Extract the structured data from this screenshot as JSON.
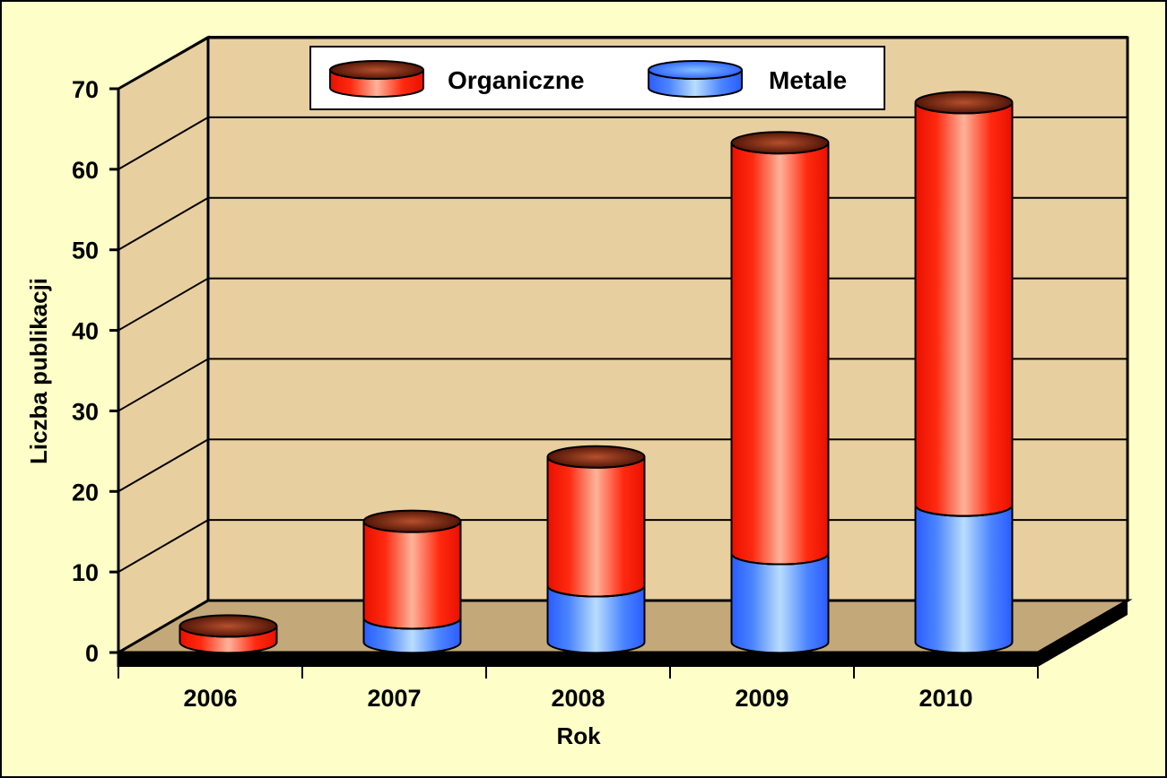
{
  "chart_data": {
    "type": "bar",
    "stacked": true,
    "three_d": true,
    "bar_shape": "cylinder",
    "categories": [
      "2006",
      "2007",
      "2008",
      "2009",
      "2010"
    ],
    "series": [
      {
        "name": "Metale",
        "color": "#3f7bff",
        "values": [
          0,
          3,
          7,
          11,
          17
        ]
      },
      {
        "name": "Organiczne",
        "color": "#ff2a10",
        "values": [
          2,
          12,
          16,
          51,
          50
        ]
      }
    ],
    "xlabel": "Rok",
    "ylabel": "Liczba publikacji",
    "yticks": [
      "0",
      "10",
      "20",
      "30",
      "40",
      "50",
      "60",
      "70"
    ],
    "ylim": [
      0,
      70
    ],
    "grid": true,
    "legend": {
      "position": "top-center",
      "entries": [
        "Organiczne",
        "Metale"
      ]
    },
    "colors": {
      "background": "#fefec8",
      "back_wall": "#e8cfa0",
      "floor": "#c3a87a",
      "top_cap": "#5a1608"
    }
  }
}
